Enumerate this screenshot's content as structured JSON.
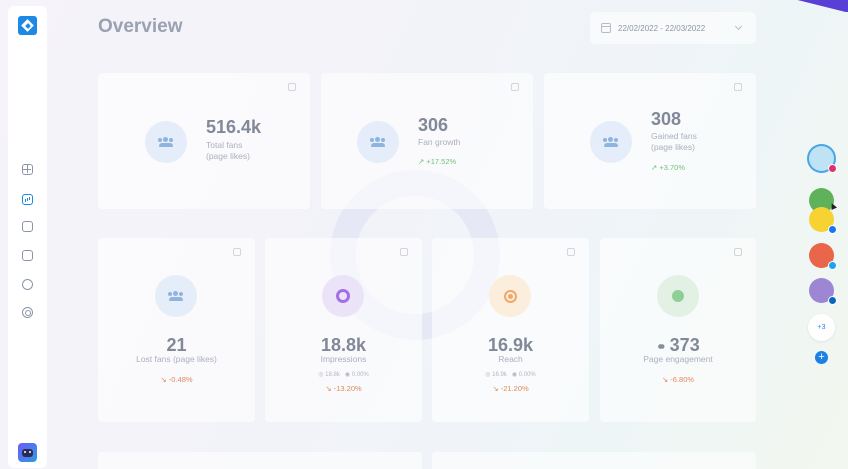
{
  "header": {
    "title": "Overview",
    "date_range": "22/02/2022 - 22/03/2022"
  },
  "sidebar": {
    "items": [
      "dashboard-icon",
      "analytics-icon",
      "media-icon",
      "notes-icon",
      "chat-icon",
      "target-icon"
    ],
    "active": "analytics-icon"
  },
  "top_cards": [
    {
      "value": "516.4k",
      "label_line1": "Total fans",
      "label_line2": "(page likes)",
      "change": ""
    },
    {
      "value": "306",
      "label_line1": "Fan growth",
      "label_line2": "",
      "change": "+17.52%"
    },
    {
      "value": "308",
      "label_line1": "Gained fans",
      "label_line2": "(page likes)",
      "change": "+3.70%"
    }
  ],
  "bottom_cards": [
    {
      "value": "21",
      "label": "Lost fans (page likes)",
      "sub_left": "",
      "sub_right": "",
      "change": "-0.48%"
    },
    {
      "value": "18.8k",
      "label": "Impressions",
      "sub_left": "18.8k",
      "sub_right": "0.00%",
      "change": "-13.20%"
    },
    {
      "value": "16.9k",
      "label": "Reach",
      "sub_left": "16.9k",
      "sub_right": "0.00%",
      "change": "-21.20%"
    },
    {
      "value": "373",
      "label": "Page engagement",
      "sub_left": "",
      "sub_right": "",
      "change": "-6.80%"
    }
  ],
  "social_rail": {
    "more_label": "+3",
    "add_label": "+",
    "networks": [
      "instagram",
      "facebook",
      "twitter",
      "linkedin"
    ]
  },
  "colors": {
    "accent": "#1e88e5",
    "positive": "#71c27b",
    "negative": "#e08a5b"
  }
}
